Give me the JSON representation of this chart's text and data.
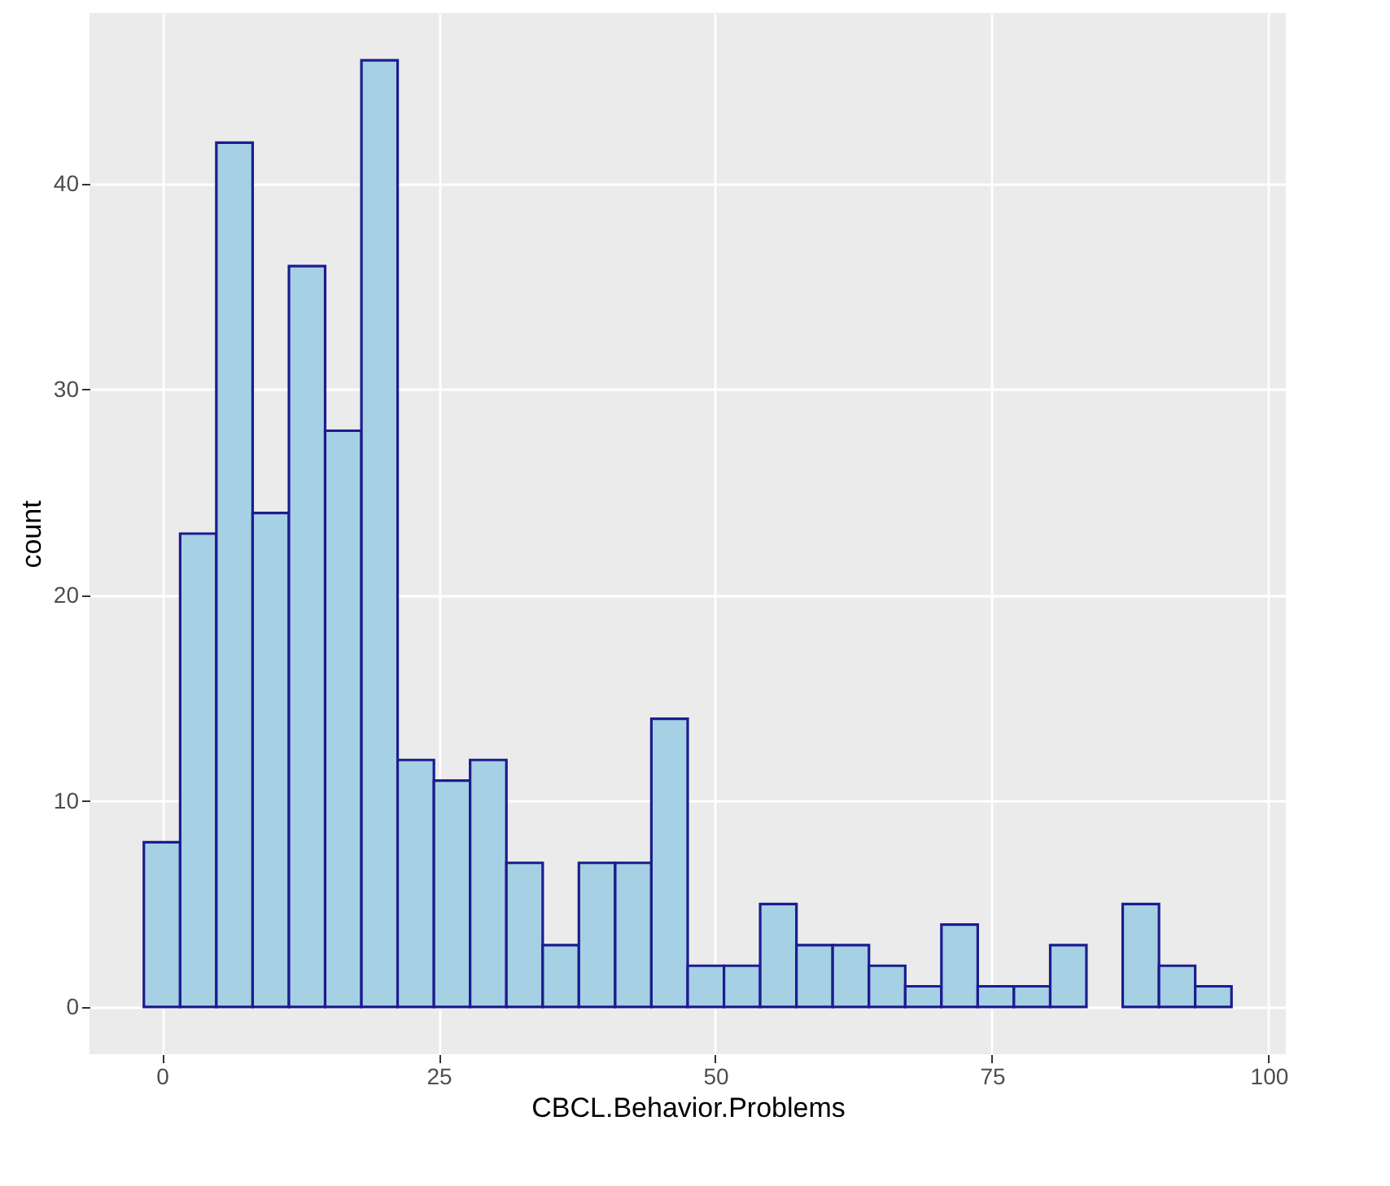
{
  "chart_data": {
    "type": "histogram",
    "xlabel": "CBCL.Behavior.Problems",
    "ylabel": "count",
    "bins": [
      -1.64,
      1.64,
      4.91,
      8.19,
      11.47,
      14.74,
      18.02,
      21.29,
      24.57,
      27.84,
      31.12,
      34.4,
      37.67,
      40.95,
      44.22,
      47.5,
      50.78,
      54.05,
      57.33,
      60.6,
      63.88,
      67.16,
      70.43,
      73.71,
      76.98,
      80.26,
      83.53,
      86.81,
      90.09,
      93.36,
      96.64
    ],
    "values": [
      8,
      23,
      42,
      24,
      36,
      28,
      46,
      12,
      11,
      12,
      7,
      3,
      7,
      7,
      14,
      2,
      2,
      5,
      3,
      3,
      2,
      1,
      4,
      1,
      1,
      3,
      0,
      5,
      2,
      1
    ],
    "color": "#a6d0e4",
    "xlim": [
      -6.55,
      101.55
    ],
    "xticks": [
      0,
      25,
      50,
      75,
      100
    ],
    "ylim": [
      -2.3,
      48.3
    ],
    "yticks": [
      0,
      10,
      20,
      30,
      40
    ],
    "grid": true
  }
}
